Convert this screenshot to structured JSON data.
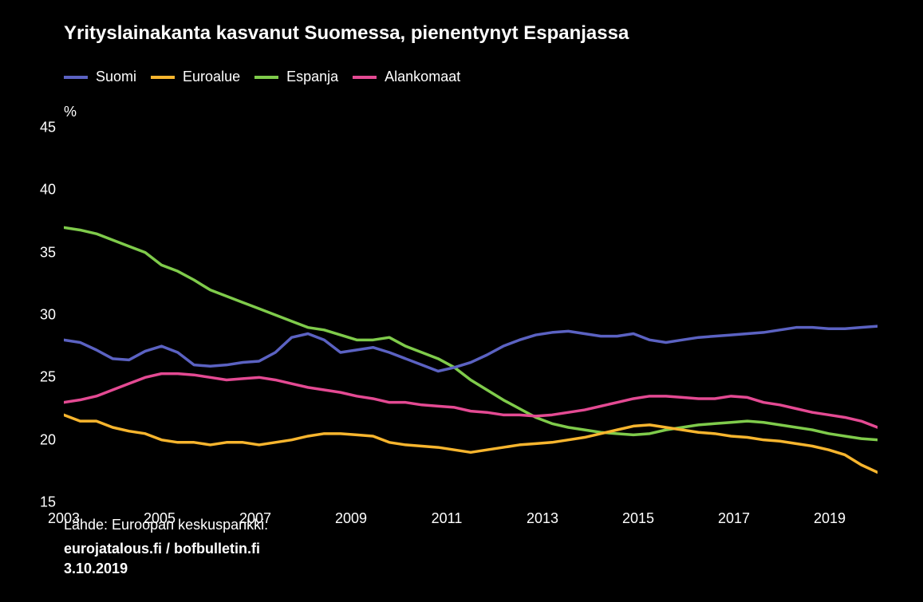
{
  "title": "Yrityslainakanta kasvanut Suomessa, pienentynyt Espanjassa",
  "y_axis_label": "%",
  "legend": [
    {
      "label": "Suomi",
      "color": "#5b62c2"
    },
    {
      "label": "Euroalue",
      "color": "#f7b52e"
    },
    {
      "label": "Espanja",
      "color": "#7fcb4b"
    },
    {
      "label": "Alankomaat",
      "color": "#e44a93"
    }
  ],
  "x": {
    "min": 2003,
    "max": 2020,
    "ticks": [
      2003,
      2005,
      2007,
      2009,
      2011,
      2013,
      2015,
      2017,
      2019
    ]
  },
  "y": {
    "min": 15,
    "max": 45,
    "ticks": [
      15,
      20,
      25,
      30,
      35,
      40,
      45
    ]
  },
  "series": {
    "suomi": [
      28.0,
      27.8,
      27.2,
      26.5,
      26.4,
      27.1,
      27.5,
      27.0,
      26.0,
      25.9,
      26.0,
      26.2,
      26.3,
      27.0,
      28.2,
      28.5,
      28.0,
      27.0,
      27.2,
      27.4,
      27.0,
      26.5,
      26.0,
      25.5,
      25.8,
      26.2,
      26.8,
      27.5,
      28.0,
      28.4,
      28.6,
      28.7,
      28.5,
      28.3,
      28.3,
      28.5,
      28.0,
      27.8,
      28.0,
      28.2,
      28.3,
      28.4,
      28.5,
      28.6,
      28.8,
      29.0,
      29.0,
      28.9,
      28.9,
      29.0,
      29.1
    ],
    "euroalue": [
      22.0,
      21.5,
      21.5,
      21.0,
      20.7,
      20.5,
      20.0,
      19.8,
      19.8,
      19.6,
      19.8,
      19.8,
      19.6,
      19.8,
      20.0,
      20.3,
      20.5,
      20.5,
      20.4,
      20.3,
      19.8,
      19.6,
      19.5,
      19.4,
      19.2,
      19.0,
      19.2,
      19.4,
      19.6,
      19.7,
      19.8,
      20.0,
      20.2,
      20.5,
      20.8,
      21.1,
      21.2,
      21.0,
      20.8,
      20.6,
      20.5,
      20.3,
      20.2,
      20.0,
      19.9,
      19.7,
      19.5,
      19.2,
      18.8,
      18.0,
      17.4
    ],
    "espanja": [
      37.0,
      36.8,
      36.5,
      36.0,
      35.5,
      35.0,
      34.0,
      33.5,
      32.8,
      32.0,
      31.5,
      31.0,
      30.5,
      30.0,
      29.5,
      29.0,
      28.8,
      28.4,
      28.0,
      28.0,
      28.2,
      27.5,
      27.0,
      26.5,
      25.8,
      24.8,
      24.0,
      23.2,
      22.5,
      21.8,
      21.3,
      21.0,
      20.8,
      20.6,
      20.5,
      20.4,
      20.5,
      20.8,
      21.0,
      21.2,
      21.3,
      21.4,
      21.5,
      21.4,
      21.2,
      21.0,
      20.8,
      20.5,
      20.3,
      20.1,
      20.0
    ],
    "alankomaat": [
      23.0,
      23.2,
      23.5,
      24.0,
      24.5,
      25.0,
      25.3,
      25.3,
      25.2,
      25.0,
      24.8,
      24.9,
      25.0,
      24.8,
      24.5,
      24.2,
      24.0,
      23.8,
      23.5,
      23.3,
      23.0,
      23.0,
      22.8,
      22.7,
      22.6,
      22.3,
      22.2,
      22.0,
      22.0,
      21.9,
      22.0,
      22.2,
      22.4,
      22.7,
      23.0,
      23.3,
      23.5,
      23.5,
      23.4,
      23.3,
      23.3,
      23.5,
      23.4,
      23.0,
      22.8,
      22.5,
      22.2,
      22.0,
      21.8,
      21.5,
      21.0
    ]
  },
  "series_stroke_width": 3.5,
  "x_ticklabels": [
    "2003",
    "2005",
    "2007",
    "2009",
    "2011",
    "2013",
    "2015",
    "2017",
    "2019"
  ],
  "y_ticklabels": [
    "15",
    "20",
    "25",
    "30",
    "35",
    "40",
    "45"
  ],
  "source": "Lähde: Euroopan keskuspankki.",
  "attribution_line1": "eurojatalous.fi / bofbulletin.fi",
  "attribution_line2": "3.10.2019",
  "background_color": "#000000",
  "text_color": "#ffffff",
  "title_fontsize": 24,
  "label_fontsize": 18
}
